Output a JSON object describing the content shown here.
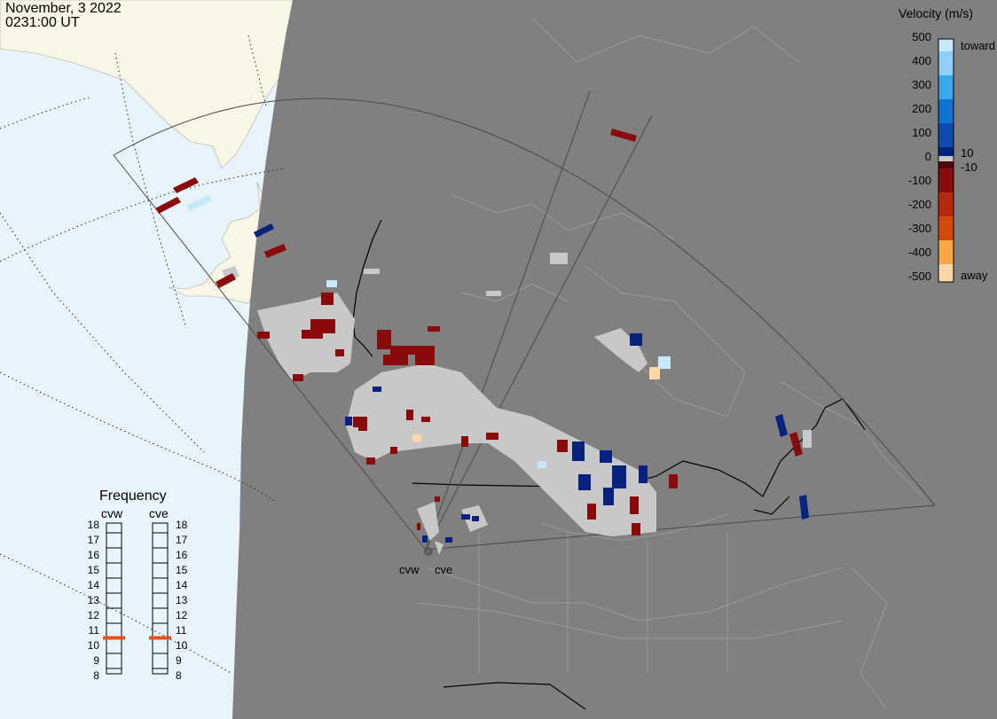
{
  "header": {
    "date": "November, 3 2022",
    "time": "0231:00 UT"
  },
  "velocity_legend": {
    "title": "Velocity (m/s)",
    "ticks": [
      "500",
      "400",
      "300",
      "200",
      "100",
      "0",
      "-100",
      "-200",
      "-300",
      "-400",
      "-500"
    ],
    "extra_labels": [
      "10",
      "-10"
    ],
    "toward_label": "toward",
    "away_label": "away",
    "colors": [
      "#c6e8fb",
      "#8fd0f8",
      "#3aa7ee",
      "#0f74d6",
      "#0f4ab0",
      "#07237e",
      "#4a0a0a",
      "#8a0b0b",
      "#b52a0d",
      "#d44a0a",
      "#f2760a",
      "#f9a740",
      "#fbd6a6"
    ]
  },
  "frequency_panel": {
    "title": "Frequency",
    "radars": [
      "cvw",
      "cve"
    ],
    "scale": [
      "18",
      "17",
      "16",
      "15",
      "14",
      "13",
      "12",
      "11",
      "10",
      "9",
      "8"
    ],
    "selected_mhz": {
      "cvw": 10.5,
      "cve": 10.5
    },
    "marker_color": "#e8501a"
  },
  "map": {
    "radar_labels": [
      "cvw",
      "cve"
    ],
    "colors": {
      "ocean": "#e8f4fb",
      "land_sunlit": "#f8f6e4",
      "night": "#808080",
      "ground_scatter": "#c8c8c8",
      "fov_outline": "#4a4a4a"
    }
  }
}
